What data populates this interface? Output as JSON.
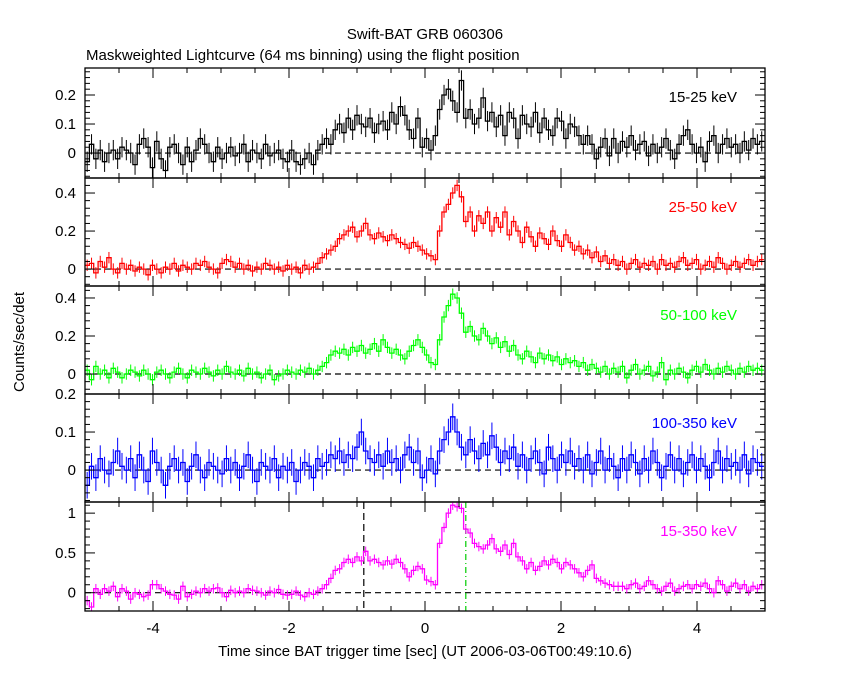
{
  "chart_data": {
    "type": "line",
    "title": "Swift-BAT GRB 060306",
    "subtitle": "Maskweighted Lightcurve (64 ms binning) using the flight position",
    "xlabel": "Time since BAT trigger time [sec] (UT 2006-03-06T00:49:10.6)",
    "ylabel": "Counts/sec/det",
    "xlim": [
      -5,
      5
    ],
    "x_ticks": [
      "-4",
      "-2",
      "0",
      "2",
      "4"
    ],
    "x_tick_values": [
      -4,
      -2,
      0,
      2,
      4
    ],
    "bin_width": 0.064,
    "x_start": -5.0,
    "markers": [
      {
        "name": "t-start",
        "x": -0.9,
        "style": "dashed",
        "color": "#000000"
      },
      {
        "name": "t-end",
        "x": 0.6,
        "style": "dash-dot",
        "color": "#00cc00"
      }
    ],
    "series": [
      {
        "name": "15-25 keV",
        "color": "#000000",
        "ylim": [
          -0.086,
          0.293
        ],
        "yticks": [
          0,
          0.1,
          0.2
        ],
        "yticklabels": [
          "0",
          "0.1",
          "0.2"
        ],
        "err": 0.035,
        "values": [
          -0.03,
          0.03,
          -0.02,
          0.01,
          -0.03,
          0.0,
          0.01,
          -0.02,
          0.02,
          0.01,
          0.0,
          -0.04,
          0.03,
          0.05,
          0.02,
          -0.05,
          0.04,
          -0.02,
          -0.06,
          0.02,
          0.03,
          0.0,
          -0.04,
          0.02,
          -0.03,
          0.01,
          0.05,
          0.03,
          0.0,
          -0.03,
          0.02,
          -0.02,
          0.0,
          0.02,
          -0.01,
          0.0,
          0.03,
          -0.03,
          0.01,
          0.0,
          -0.02,
          0.03,
          -0.01,
          0.0,
          0.01,
          -0.02,
          -0.03,
          0.01,
          -0.03,
          -0.04,
          -0.02,
          0.0,
          -0.04,
          0.01,
          0.03,
          0.05,
          0.03,
          0.08,
          0.1,
          0.07,
          0.12,
          0.08,
          0.13,
          0.1,
          0.09,
          0.12,
          0.07,
          0.1,
          0.11,
          0.08,
          0.14,
          0.1,
          0.16,
          0.13,
          0.08,
          0.05,
          0.12,
          0.02,
          0.05,
          0.01,
          0.06,
          0.15,
          0.2,
          0.22,
          0.18,
          0.14,
          0.25,
          0.12,
          0.15,
          0.1,
          0.12,
          0.19,
          0.11,
          0.14,
          0.09,
          0.13,
          0.06,
          0.14,
          0.12,
          0.05,
          0.13,
          0.1,
          0.09,
          0.14,
          0.07,
          0.12,
          0.08,
          0.06,
          0.12,
          0.11,
          0.05,
          0.1,
          0.09,
          0.06,
          0.03,
          0.06,
          0.03,
          -0.02,
          0.02,
          0.05,
          -0.01,
          0.05,
          0.0,
          0.04,
          0.02,
          0.06,
          0.01,
          0.03,
          0.04,
          -0.01,
          0.03,
          0.0,
          0.02,
          0.05,
          0.01,
          -0.02,
          0.03,
          0.06,
          0.08,
          0.03,
          0.0,
          0.02,
          -0.03,
          0.04,
          0.06,
          0.0,
          0.03,
          0.05,
          0.02,
          0.03,
          0.0,
          0.04,
          0.01,
          0.05,
          0.03,
          0.04
        ]
      },
      {
        "name": "25-50 keV",
        "color": "#ff0000",
        "ylim": [
          -0.089,
          0.479
        ],
        "yticks": [
          0,
          0.2,
          0.4
        ],
        "yticklabels": [
          "0",
          "0.2",
          "0.4"
        ],
        "err": 0.03,
        "values": [
          0.02,
          0.03,
          -0.02,
          0.04,
          0.01,
          0.06,
          0.0,
          -0.02,
          0.03,
          0.0,
          0.02,
          -0.01,
          0.01,
          0.0,
          -0.03,
          0.02,
          0.0,
          -0.02,
          0.01,
          0.0,
          0.03,
          -0.01,
          0.02,
          0.01,
          0.0,
          0.03,
          0.02,
          0.04,
          0.01,
          0.0,
          -0.02,
          0.03,
          0.05,
          0.04,
          0.01,
          0.03,
          0.0,
          0.02,
          -0.01,
          0.01,
          0.0,
          0.03,
          0.02,
          0.0,
          0.01,
          -0.01,
          0.02,
          0.0,
          0.01,
          -0.02,
          0.02,
          0.0,
          0.01,
          0.03,
          0.06,
          0.08,
          0.1,
          0.12,
          0.16,
          0.18,
          0.2,
          0.22,
          0.17,
          0.2,
          0.24,
          0.18,
          0.16,
          0.19,
          0.17,
          0.15,
          0.18,
          0.16,
          0.14,
          0.13,
          0.11,
          0.14,
          0.12,
          0.1,
          0.08,
          0.07,
          0.05,
          0.2,
          0.3,
          0.34,
          0.4,
          0.44,
          0.38,
          0.25,
          0.3,
          0.2,
          0.28,
          0.24,
          0.3,
          0.2,
          0.27,
          0.22,
          0.3,
          0.18,
          0.25,
          0.2,
          0.14,
          0.22,
          0.17,
          0.12,
          0.19,
          0.16,
          0.13,
          0.2,
          0.15,
          0.12,
          0.18,
          0.14,
          0.1,
          0.12,
          0.08,
          0.1,
          0.06,
          0.09,
          0.04,
          0.07,
          0.03,
          0.05,
          0.02,
          0.04,
          0.0,
          0.03,
          0.05,
          0.01,
          0.03,
          0.02,
          0.04,
          0.0,
          0.05,
          0.02,
          0.03,
          0.01,
          0.04,
          0.06,
          0.02,
          0.03,
          0.05,
          0.0,
          0.02,
          0.04,
          0.01,
          0.06,
          0.03,
          0.0,
          0.02,
          0.04,
          0.01,
          0.03,
          0.05,
          0.02,
          0.04,
          0.05
        ]
      },
      {
        "name": "50-100 keV",
        "color": "#00ff00",
        "ylim": [
          -0.105,
          0.463
        ],
        "yticks": [
          0,
          0.2,
          0.4
        ],
        "yticklabels": [
          "0",
          "0.2",
          "0.4"
        ],
        "err": 0.03,
        "values": [
          0.02,
          -0.03,
          0.04,
          0.0,
          0.02,
          -0.02,
          0.03,
          0.01,
          -0.02,
          0.0,
          0.02,
          0.01,
          -0.01,
          0.02,
          0.0,
          -0.03,
          0.01,
          0.02,
          0.0,
          -0.02,
          0.01,
          0.03,
          0.0,
          -0.02,
          0.02,
          0.01,
          0.0,
          0.03,
          0.01,
          -0.01,
          0.02,
          0.0,
          0.04,
          0.01,
          0.0,
          0.02,
          -0.01,
          0.03,
          0.0,
          0.01,
          -0.02,
          0.0,
          0.02,
          -0.03,
          -0.01,
          0.0,
          0.02,
          0.01,
          0.0,
          0.02,
          0.01,
          0.03,
          0.0,
          0.02,
          0.04,
          0.06,
          0.1,
          0.12,
          0.11,
          0.13,
          0.1,
          0.14,
          0.12,
          0.15,
          0.11,
          0.13,
          0.16,
          0.12,
          0.18,
          0.14,
          0.11,
          0.13,
          0.1,
          0.08,
          0.12,
          0.15,
          0.18,
          0.14,
          0.1,
          0.06,
          0.05,
          0.18,
          0.3,
          0.36,
          0.42,
          0.4,
          0.32,
          0.22,
          0.25,
          0.2,
          0.18,
          0.24,
          0.2,
          0.16,
          0.19,
          0.14,
          0.17,
          0.12,
          0.15,
          0.1,
          0.08,
          0.12,
          0.09,
          0.06,
          0.11,
          0.08,
          0.1,
          0.07,
          0.09,
          0.05,
          0.08,
          0.06,
          0.07,
          0.04,
          0.06,
          0.02,
          0.05,
          0.03,
          0.01,
          0.04,
          0.0,
          0.03,
          0.01,
          0.04,
          -0.02,
          0.02,
          0.05,
          0.0,
          0.02,
          0.04,
          -0.01,
          0.01,
          0.06,
          -0.03,
          0.02,
          0.0,
          0.03,
          0.01,
          -0.02,
          0.02,
          0.04,
          0.01,
          0.05,
          0.02,
          0.0,
          0.03,
          0.01,
          0.04,
          0.02,
          0.0,
          0.03,
          0.01,
          0.04,
          0.02,
          0.03,
          0.02
        ]
      },
      {
        "name": "100-350 keV",
        "color": "#0000ff",
        "ylim": [
          -0.084,
          0.2
        ],
        "yticks": [
          0,
          0.1,
          0.2
        ],
        "yticklabels": [
          "0",
          "0.1",
          "0.2"
        ],
        "err": 0.035,
        "values": [
          -0.04,
          0.01,
          -0.02,
          0.03,
          0.0,
          -0.01,
          0.02,
          0.05,
          0.01,
          0.0,
          0.03,
          -0.02,
          0.04,
          0.0,
          -0.03,
          0.05,
          0.02,
          0.0,
          -0.04,
          0.01,
          0.03,
          0.0,
          0.02,
          -0.03,
          0.01,
          0.04,
          0.0,
          -0.02,
          0.02,
          0.01,
          0.0,
          -0.01,
          0.03,
          0.0,
          0.02,
          -0.02,
          0.01,
          0.04,
          0.0,
          -0.03,
          0.02,
          0.01,
          0.0,
          0.03,
          -0.02,
          0.01,
          0.0,
          0.02,
          -0.03,
          0.0,
          0.02,
          0.01,
          -0.02,
          0.03,
          0.01,
          0.02,
          0.04,
          0.03,
          0.05,
          0.02,
          0.04,
          0.03,
          0.06,
          0.1,
          0.05,
          0.03,
          0.02,
          0.04,
          0.01,
          0.05,
          0.02,
          0.03,
          0.0,
          0.04,
          0.06,
          0.02,
          0.05,
          -0.02,
          0.0,
          0.03,
          -0.01,
          0.05,
          0.08,
          0.1,
          0.14,
          0.1,
          0.06,
          0.04,
          0.08,
          0.05,
          0.03,
          0.07,
          0.04,
          0.09,
          0.06,
          0.02,
          0.05,
          0.03,
          0.06,
          0.01,
          0.04,
          0.0,
          0.03,
          0.05,
          0.02,
          -0.01,
          0.06,
          0.03,
          0.0,
          0.04,
          0.02,
          0.05,
          0.01,
          0.03,
          0.0,
          0.04,
          -0.01,
          0.02,
          0.05,
          0.0,
          0.03,
          0.01,
          -0.02,
          0.03,
          0.0,
          0.04,
          0.02,
          -0.01,
          0.03,
          0.0,
          0.05,
          0.02,
          -0.02,
          0.01,
          0.04,
          0.0,
          0.03,
          -0.01,
          0.02,
          0.04,
          0.0,
          0.03,
          0.01,
          -0.02,
          0.02,
          0.05,
          0.0,
          0.03,
          0.01,
          0.02,
          0.0,
          0.04,
          -0.01,
          0.03,
          0.02,
          0.01
        ]
      },
      {
        "name": "15-350 keV",
        "color": "#ff00ff",
        "ylim": [
          -0.23,
          1.14
        ],
        "yticks": [
          0,
          0.5,
          1
        ],
        "yticklabels": [
          "0",
          "0.5",
          "1"
        ],
        "err": 0.06,
        "values": [
          -0.1,
          -0.18,
          0.05,
          -0.02,
          0.05,
          0.02,
          0.08,
          -0.05,
          0.05,
          0.02,
          -0.08,
          0.0,
          -0.02,
          -0.05,
          -0.03,
          0.1,
          0.1,
          0.05,
          0.02,
          -0.02,
          -0.03,
          -0.08,
          0.08,
          -0.05,
          -0.02,
          0.02,
          0.0,
          0.05,
          0.02,
          0.05,
          0.06,
          0.0,
          -0.05,
          0.03,
          0.0,
          0.02,
          0.0,
          0.05,
          0.03,
          0.02,
          0.0,
          -0.03,
          0.02,
          0.0,
          0.04,
          -0.02,
          -0.03,
          -0.02,
          0.02,
          -0.03,
          -0.05,
          0.0,
          -0.02,
          0.02,
          0.05,
          0.1,
          0.18,
          0.28,
          0.3,
          0.38,
          0.42,
          0.38,
          0.45,
          0.4,
          0.52,
          0.4,
          0.42,
          0.38,
          0.35,
          0.4,
          0.36,
          0.42,
          0.38,
          0.3,
          0.2,
          0.28,
          0.33,
          0.3,
          0.16,
          0.14,
          0.1,
          0.62,
          0.82,
          1.0,
          1.1,
          1.08,
          1.06,
          0.8,
          0.75,
          0.62,
          0.58,
          0.55,
          0.6,
          0.68,
          0.55,
          0.52,
          0.6,
          0.48,
          0.62,
          0.45,
          0.4,
          0.3,
          0.38,
          0.28,
          0.33,
          0.4,
          0.35,
          0.42,
          0.38,
          0.3,
          0.38,
          0.35,
          0.3,
          0.25,
          0.2,
          0.28,
          0.35,
          0.18,
          0.15,
          0.12,
          0.1,
          0.08,
          0.08,
          0.08,
          0.05,
          0.1,
          0.12,
          0.05,
          0.08,
          0.15,
          0.1,
          0.05,
          0.02,
          0.08,
          0.12,
          0.02,
          0.05,
          0.08,
          0.1,
          0.05,
          0.1,
          0.08,
          0.12,
          0.05,
          0.0,
          0.15,
          0.1,
          0.02,
          0.08,
          0.12,
          0.05,
          0.1,
          0.02,
          0.08,
          0.05,
          0.1
        ]
      }
    ]
  }
}
